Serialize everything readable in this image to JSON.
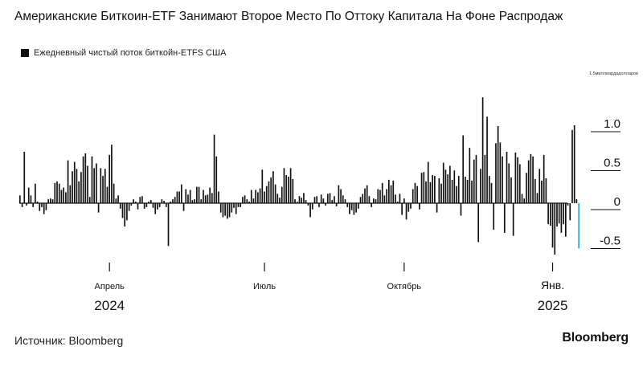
{
  "title": "Американские Биткоин-ETF Занимают Второе Место По Оттоку Капитала На Фоне Распродаж",
  "legend_label": "Ежедневный чистый поток биткойн-ETFS США",
  "unit_label": "1,5миллиардадолларов",
  "source": "Источник: Bloomberg",
  "brand": "Bloomberg",
  "chart_data": {
    "type": "bar",
    "bar_color": "#111111",
    "highlight_color": "#27a9e1",
    "ylim": [
      -0.75,
      1.5
    ],
    "y_ticks": [
      {
        "value": 1.0,
        "label": "1.0"
      },
      {
        "value": 0.5,
        "label": "0.5"
      },
      {
        "value": 0,
        "label": "0"
      },
      {
        "value": -0.5,
        "label": "-0.5"
      }
    ],
    "x_ticks": [
      {
        "index": 41,
        "label": "Апрель",
        "year": "2024"
      },
      {
        "index": 112,
        "label": "Июль",
        "year": ""
      },
      {
        "index": 176,
        "label": "Октябрь",
        "year": ""
      },
      {
        "index": 244,
        "label": "Янв.",
        "year": "2025"
      }
    ],
    "values": [
      0.1,
      -0.05,
      0.66,
      -0.03,
      0.2,
      0.1,
      -0.05,
      0.25,
      0.02,
      -0.1,
      -0.05,
      -0.14,
      -0.09,
      0.05,
      0.06,
      0.05,
      0.26,
      0.28,
      0.25,
      0.17,
      0.2,
      0.14,
      0.55,
      0.23,
      0.41,
      0.53,
      0.44,
      0.28,
      0.4,
      0.6,
      0.64,
      0.48,
      0.08,
      0.6,
      0.45,
      0.51,
      -0.12,
      0.45,
      0.35,
      0.44,
      0.21,
      0.62,
      0.75,
      0.25,
      0.06,
      0.1,
      -0.07,
      -0.19,
      -0.3,
      -0.22,
      -0.1,
      -0.03,
      0.05,
      0.02,
      -0.08,
      0.08,
      0.09,
      -0.07,
      -0.05,
      0.02,
      0.04,
      -0.06,
      -0.14,
      -0.08,
      -0.05,
      0.05,
      0.03,
      -0.05,
      -0.55,
      0.02,
      0.05,
      0.08,
      0.15,
      0.15,
      0.24,
      -0.1,
      0.18,
      0.11,
      0.17,
      0.04,
      0.05,
      0.21,
      0.21,
      0.05,
      0.17,
      0.1,
      0.11,
      0.2,
      0.13,
      0.88,
      0.6,
      0.15,
      -0.12,
      -0.18,
      -0.16,
      -0.2,
      -0.18,
      -0.12,
      -0.06,
      -0.14,
      -0.05,
      -0.05,
      0.08,
      0.1,
      0.05,
      0.02,
      0.17,
      0.06,
      0.17,
      0.14,
      0.19,
      0.43,
      0.15,
      0.22,
      0.28,
      0.33,
      0.41,
      0.24,
      0.12,
      0.07,
      0.21,
      0.45,
      0.36,
      0.34,
      0.45,
      0.31,
      0.05,
      0.02,
      0.09,
      0.07,
      0.13,
      0.04,
      -0.03,
      -0.18,
      -0.08,
      0.08,
      0.09,
      -0.05,
      0.11,
      0.06,
      -0.03,
      0.12,
      0.13,
      0.04,
      0.09,
      -0.04,
      0.23,
      0.18,
      0.1,
      0.05,
      -0.05,
      -0.14,
      -0.09,
      -0.15,
      -0.12,
      -0.07,
      0.08,
      0.12,
      0.19,
      0.23,
      0.09,
      -0.05,
      0.06,
      0.05,
      0.18,
      0.17,
      0.26,
      0.1,
      0.18,
      0.3,
      0.23,
      0.29,
      0.11,
      0.02,
      0.12,
      -0.15,
      0.06,
      -0.21,
      -0.11,
      -0.07,
      0.18,
      0.26,
      0.22,
      -0.08,
      0.39,
      0.4,
      0.28,
      0.53,
      0.27,
      0.36,
      0.35,
      -0.12,
      0.32,
      0.25,
      0.52,
      0.43,
      0.37,
      0.48,
      0.3,
      0.42,
      0.22,
      0.35,
      -0.16,
      0.87,
      0.34,
      0.3,
      0.71,
      0.29,
      0.56,
      0.62,
      -0.5,
      0.44,
      1.36,
      0.62,
      1.11,
      0.35,
      0.26,
      -0.34,
      0.77,
      0.99,
      0.78,
      0.6,
      -0.38,
      0.66,
      0.51,
      0.33,
      -0.42,
      0.65,
      0.59,
      0.5,
      0.12,
      0.06,
      0.39,
      0.55,
      0.63,
      0.6,
      0.31,
      0.13,
      0.44,
      0.29,
      0.62,
      0.32,
      -0.27,
      -0.29,
      -0.57,
      -0.66,
      -0.3,
      -0.26,
      -0.38,
      -0.27,
      -0.43,
      -0.03,
      -0.22,
      0.94,
      1.0,
      0.05,
      -0.58
    ],
    "highlight_last": true
  }
}
